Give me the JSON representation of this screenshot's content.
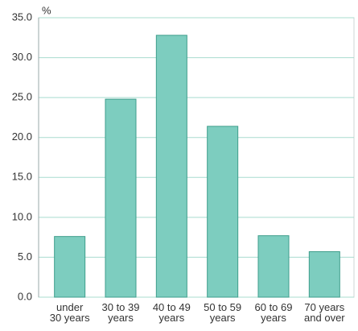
{
  "chart_data": {
    "type": "bar",
    "y_unit": "%",
    "categories": [
      "under\n30 years",
      "30 to 39\nyears",
      "40 to 49\nyears",
      "50 to 59\nyears",
      "60 to 69\nyears",
      "70 years\nand over"
    ],
    "values": [
      7.6,
      24.8,
      32.8,
      21.4,
      7.7,
      5.7
    ],
    "color": "#7dcdbf",
    "edge_color": "#3f9e8c",
    "grid_color": "#a8dccf",
    "ylim": [
      0,
      35
    ],
    "yticks": [
      {
        "value": 0,
        "label": "0.0"
      },
      {
        "value": 5,
        "label": "5.0"
      },
      {
        "value": 10,
        "label": "10.0"
      },
      {
        "value": 15,
        "label": "15.0"
      },
      {
        "value": 20,
        "label": "20.0"
      },
      {
        "value": 25,
        "label": "25.0"
      },
      {
        "value": 30,
        "label": "30.0"
      },
      {
        "value": 35,
        "label": "35.0"
      }
    ],
    "grid": true
  }
}
